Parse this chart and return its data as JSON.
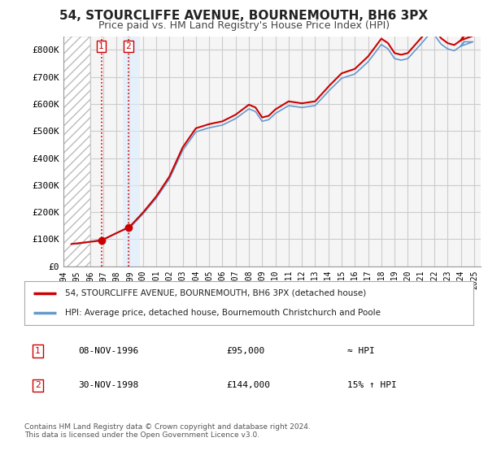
{
  "title": "54, STOURCLIFFE AVENUE, BOURNEMOUTH, BH6 3PX",
  "subtitle": "Price paid vs. HM Land Registry's House Price Index (HPI)",
  "legend_line1": "54, STOURCLIFFE AVENUE, BOURNEMOUTH, BH6 3PX (detached house)",
  "legend_line2": "HPI: Average price, detached house, Bournemouth Christchurch and Poole",
  "footnote": "Contains HM Land Registry data © Crown copyright and database right 2024.\nThis data is licensed under the Open Government Licence v3.0.",
  "transaction1_date": "08-NOV-1996",
  "transaction1_price": "£95,000",
  "transaction1_hpi": "≈ HPI",
  "transaction1_year": 1996.86,
  "transaction1_value": 95000,
  "transaction2_date": "30-NOV-1998",
  "transaction2_price": "£144,000",
  "transaction2_hpi": "15% ↑ HPI",
  "transaction2_year": 1998.91,
  "transaction2_value": 144000,
  "price_line_color": "#cc0000",
  "hpi_line_color": "#6699cc",
  "background_color": "#ffffff",
  "plot_bg_color": "#f5f5f5",
  "grid_color": "#cccccc",
  "ylim": [
    0,
    850000
  ],
  "yticks": [
    0,
    100000,
    200000,
    300000,
    400000,
    500000,
    600000,
    700000,
    800000
  ],
  "ytick_labels": [
    "£0",
    "£100K",
    "£200K",
    "£300K",
    "£400K",
    "£500K",
    "£600K",
    "£700K",
    "£800K"
  ],
  "xmin": 1994.0,
  "xmax": 2025.5,
  "price_years": [
    1996.86,
    1998.91
  ],
  "price_values": [
    95000,
    144000
  ],
  "xtick_years": [
    1994,
    1995,
    1996,
    1997,
    1998,
    1999,
    2000,
    2001,
    2002,
    2003,
    2004,
    2005,
    2006,
    2007,
    2008,
    2009,
    2010,
    2011,
    2012,
    2013,
    2014,
    2015,
    2016,
    2017,
    2018,
    2019,
    2020,
    2021,
    2022,
    2023,
    2024,
    2025
  ]
}
